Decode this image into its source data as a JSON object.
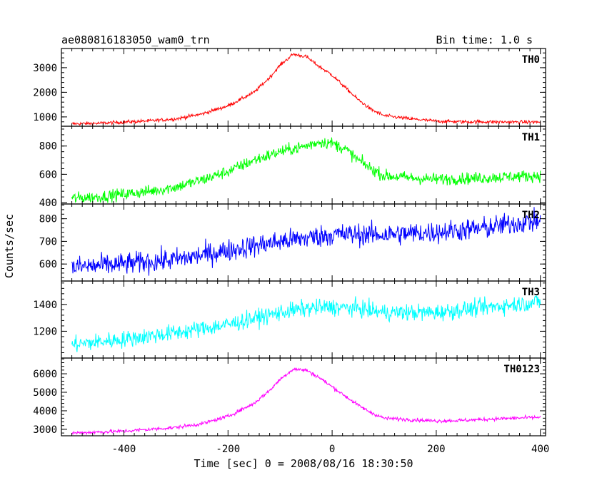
{
  "header": {
    "title": "ae080816183050_wam0_trn",
    "bin_time": "Bin time: 1.0 s"
  },
  "chart_data": {
    "type": "line",
    "title": "ae080816183050_wam0_trn",
    "subtitle": "Bin time: 1.0 s",
    "xlabel": "Time [sec] 0 = 2008/08/16 18:30:50",
    "ylabel": "Counts/sec",
    "xlim": [
      -520,
      410
    ],
    "x_ticks": [
      -400,
      -200,
      0,
      200,
      400
    ],
    "x_range": [
      -500,
      400
    ],
    "bin_time_s": 1.0,
    "grid": false,
    "panels": [
      {
        "name": "TH0",
        "color": "#ff0000",
        "ylim": [
          620,
          3780
        ],
        "yticks": [
          1000,
          2000,
          3000
        ],
        "series_points": [
          [
            -500,
            720
          ],
          [
            -450,
            740
          ],
          [
            -400,
            790
          ],
          [
            -350,
            840
          ],
          [
            -300,
            920
          ],
          [
            -250,
            1120
          ],
          [
            -200,
            1450
          ],
          [
            -150,
            2000
          ],
          [
            -120,
            2600
          ],
          [
            -100,
            3100
          ],
          [
            -75,
            3550
          ],
          [
            -50,
            3450
          ],
          [
            -25,
            3050
          ],
          [
            0,
            2700
          ],
          [
            25,
            2200
          ],
          [
            50,
            1700
          ],
          [
            75,
            1300
          ],
          [
            100,
            1050
          ],
          [
            150,
            920
          ],
          [
            200,
            830
          ],
          [
            250,
            800
          ],
          [
            300,
            800
          ],
          [
            350,
            790
          ],
          [
            400,
            790
          ]
        ],
        "noise": 50
      },
      {
        "name": "TH1",
        "color": "#00ff00",
        "ylim": [
          390,
          940
        ],
        "yticks": [
          400,
          600,
          800
        ],
        "series_points": [
          [
            -500,
            430
          ],
          [
            -450,
            440
          ],
          [
            -400,
            460
          ],
          [
            -350,
            480
          ],
          [
            -300,
            510
          ],
          [
            -250,
            560
          ],
          [
            -200,
            620
          ],
          [
            -150,
            700
          ],
          [
            -100,
            760
          ],
          [
            -50,
            800
          ],
          [
            -25,
            830
          ],
          [
            0,
            820
          ],
          [
            25,
            780
          ],
          [
            50,
            700
          ],
          [
            75,
            640
          ],
          [
            100,
            590
          ],
          [
            150,
            575
          ],
          [
            200,
            565
          ],
          [
            250,
            570
          ],
          [
            300,
            575
          ],
          [
            350,
            585
          ],
          [
            400,
            590
          ]
        ],
        "noise": 30
      },
      {
        "name": "TH2",
        "color": "#0000ff",
        "ylim": [
          525,
          865
        ],
        "yticks": [
          600,
          700,
          800
        ],
        "series_points": [
          [
            -500,
            585
          ],
          [
            -400,
            600
          ],
          [
            -300,
            620
          ],
          [
            -200,
            660
          ],
          [
            -100,
            700
          ],
          [
            0,
            730
          ],
          [
            100,
            730
          ],
          [
            200,
            740
          ],
          [
            300,
            760
          ],
          [
            350,
            780
          ],
          [
            400,
            790
          ]
        ],
        "noise": 35
      },
      {
        "name": "TH3",
        "color": "#00ffff",
        "ylim": [
          1000,
          1575
        ],
        "yticks": [
          1200,
          1400
        ],
        "series_points": [
          [
            -500,
            1100
          ],
          [
            -400,
            1140
          ],
          [
            -300,
            1190
          ],
          [
            -200,
            1250
          ],
          [
            -100,
            1340
          ],
          [
            -50,
            1370
          ],
          [
            0,
            1380
          ],
          [
            50,
            1370
          ],
          [
            100,
            1340
          ],
          [
            200,
            1340
          ],
          [
            300,
            1380
          ],
          [
            400,
            1420
          ]
        ],
        "noise": 45
      },
      {
        "name": "TH0123",
        "color": "#ff00ff",
        "ylim": [
          2650,
          6850
        ],
        "yticks": [
          3000,
          4000,
          5000,
          6000
        ],
        "series_points": [
          [
            -500,
            2800
          ],
          [
            -450,
            2850
          ],
          [
            -400,
            2900
          ],
          [
            -350,
            3000
          ],
          [
            -300,
            3100
          ],
          [
            -250,
            3300
          ],
          [
            -200,
            3700
          ],
          [
            -150,
            4400
          ],
          [
            -120,
            5100
          ],
          [
            -100,
            5700
          ],
          [
            -75,
            6250
          ],
          [
            -50,
            6200
          ],
          [
            -25,
            5800
          ],
          [
            0,
            5300
          ],
          [
            25,
            4800
          ],
          [
            50,
            4300
          ],
          [
            75,
            3900
          ],
          [
            100,
            3600
          ],
          [
            150,
            3520
          ],
          [
            200,
            3450
          ],
          [
            250,
            3480
          ],
          [
            300,
            3550
          ],
          [
            350,
            3600
          ],
          [
            400,
            3650
          ]
        ],
        "noise": 70
      }
    ]
  }
}
